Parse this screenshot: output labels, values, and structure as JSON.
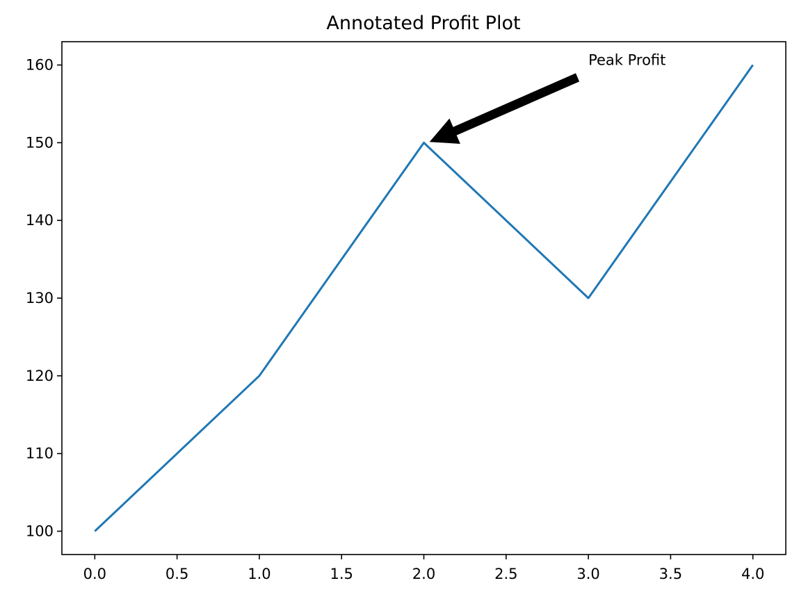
{
  "chart_data": {
    "type": "line",
    "title": "Annotated Profit Plot",
    "xlabel": "",
    "ylabel": "",
    "x": [
      0,
      1,
      2,
      3,
      4
    ],
    "series": [
      {
        "values": [
          100,
          120,
          150,
          130,
          160
        ],
        "color": "#1f77b4"
      }
    ],
    "xlim": [
      -0.2,
      4.2
    ],
    "ylim": [
      97,
      163
    ],
    "xticks": [
      0.0,
      0.5,
      1.0,
      1.5,
      2.0,
      2.5,
      3.0,
      3.5,
      4.0
    ],
    "xtick_labels": [
      "0.0",
      "0.5",
      "1.0",
      "1.5",
      "2.0",
      "2.5",
      "3.0",
      "3.5",
      "4.0"
    ],
    "yticks": [
      100,
      110,
      120,
      130,
      140,
      150,
      160
    ],
    "ytick_labels": [
      "100",
      "110",
      "120",
      "130",
      "140",
      "150",
      "160"
    ],
    "grid": false,
    "annotations": [
      {
        "text": "Peak Profit",
        "xy": [
          2,
          150
        ],
        "xytext": [
          3,
          160
        ],
        "arrow_color": "#000000"
      }
    ]
  }
}
